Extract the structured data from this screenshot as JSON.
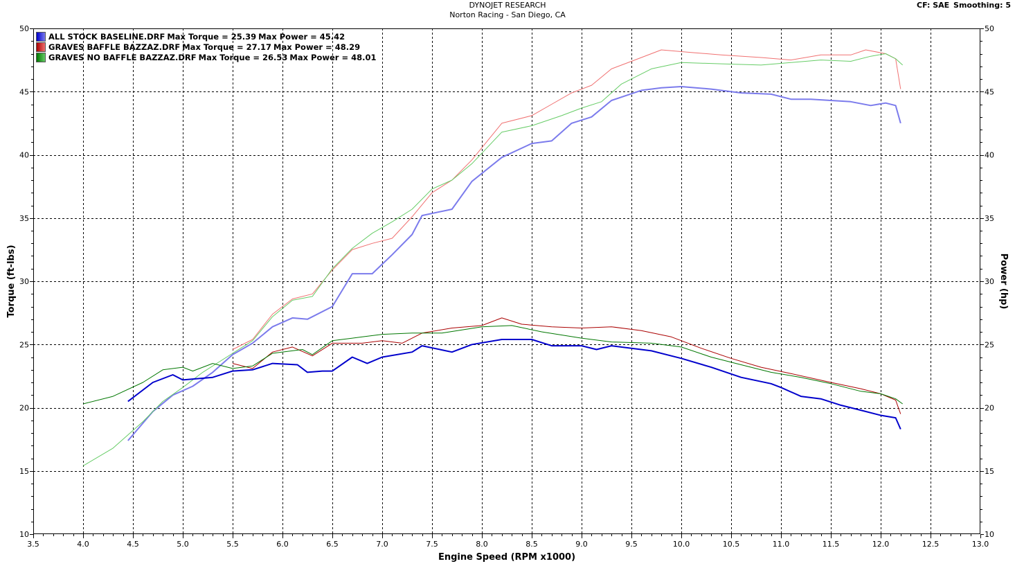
{
  "header": {
    "title": "DYNOJET RESEARCH",
    "subtitle": "Norton Racing - San Diego, CA",
    "cf_label": "CF: SAE",
    "smoothing_label": "Smoothing: 5"
  },
  "chart_data": {
    "type": "line",
    "title": "DYNOJET RESEARCH",
    "subtitle": "Norton Racing - San Diego, CA",
    "xlabel": "Engine Speed (RPM x1000)",
    "ylabel_left": "Torque (ft-lbs)",
    "ylabel_right": "Power (hp)",
    "xlim": [
      3.5,
      13.0
    ],
    "ylim": [
      10,
      50
    ],
    "xticks": [
      "3.5",
      "4.0",
      "4.5",
      "5.0",
      "5.5",
      "6.0",
      "6.5",
      "7.0",
      "7.5",
      "8.0",
      "8.5",
      "9.0",
      "9.5",
      "10.0",
      "10.5",
      "11.0",
      "11.5",
      "12.0",
      "12.5",
      "13.0"
    ],
    "yticks": [
      "10",
      "15",
      "20",
      "25",
      "30",
      "35",
      "40",
      "45",
      "50"
    ],
    "grid": true,
    "legend_position": "top-left",
    "series": [
      {
        "name": "ALL STOCK BASELINE.DRF",
        "max_torque_label": "Max Torque = 25.39",
        "max_power_label": "Max Power = 45.42",
        "color": "#0000cc",
        "power_color": "#7b7bec",
        "torque": [
          [
            4.45,
            20.5
          ],
          [
            4.7,
            22.0
          ],
          [
            4.9,
            22.6
          ],
          [
            5.0,
            22.2
          ],
          [
            5.3,
            22.4
          ],
          [
            5.5,
            22.9
          ],
          [
            5.7,
            23.0
          ],
          [
            5.9,
            23.5
          ],
          [
            6.15,
            23.4
          ],
          [
            6.25,
            22.8
          ],
          [
            6.4,
            22.9
          ],
          [
            6.5,
            22.9
          ],
          [
            6.7,
            24.0
          ],
          [
            6.85,
            23.5
          ],
          [
            7.0,
            24.0
          ],
          [
            7.3,
            24.4
          ],
          [
            7.4,
            24.9
          ],
          [
            7.7,
            24.4
          ],
          [
            7.9,
            25.0
          ],
          [
            8.2,
            25.4
          ],
          [
            8.5,
            25.4
          ],
          [
            8.7,
            24.9
          ],
          [
            9.0,
            24.9
          ],
          [
            9.15,
            24.6
          ],
          [
            9.3,
            24.9
          ],
          [
            9.5,
            24.7
          ],
          [
            9.7,
            24.5
          ],
          [
            10.0,
            23.9
          ],
          [
            10.3,
            23.2
          ],
          [
            10.6,
            22.4
          ],
          [
            10.9,
            21.9
          ],
          [
            11.0,
            21.6
          ],
          [
            11.2,
            20.9
          ],
          [
            11.4,
            20.7
          ],
          [
            11.6,
            20.2
          ],
          [
            11.8,
            19.8
          ],
          [
            12.0,
            19.4
          ],
          [
            12.15,
            19.2
          ],
          [
            12.2,
            18.3
          ]
        ],
        "power": [
          [
            4.45,
            17.4
          ],
          [
            4.7,
            19.7
          ],
          [
            4.9,
            21.0
          ],
          [
            5.1,
            21.7
          ],
          [
            5.3,
            22.8
          ],
          [
            5.5,
            24.2
          ],
          [
            5.7,
            25.1
          ],
          [
            5.9,
            26.4
          ],
          [
            6.1,
            27.1
          ],
          [
            6.25,
            27.0
          ],
          [
            6.5,
            28.0
          ],
          [
            6.7,
            30.6
          ],
          [
            6.9,
            30.6
          ],
          [
            7.1,
            32.1
          ],
          [
            7.3,
            33.7
          ],
          [
            7.4,
            35.2
          ],
          [
            7.7,
            35.7
          ],
          [
            7.9,
            37.9
          ],
          [
            8.2,
            39.8
          ],
          [
            8.5,
            40.9
          ],
          [
            8.7,
            41.1
          ],
          [
            8.9,
            42.5
          ],
          [
            9.1,
            43.0
          ],
          [
            9.3,
            44.3
          ],
          [
            9.6,
            45.1
          ],
          [
            9.8,
            45.3
          ],
          [
            10.0,
            45.4
          ],
          [
            10.3,
            45.2
          ],
          [
            10.6,
            44.9
          ],
          [
            10.9,
            44.8
          ],
          [
            11.1,
            44.4
          ],
          [
            11.3,
            44.4
          ],
          [
            11.5,
            44.3
          ],
          [
            11.7,
            44.2
          ],
          [
            11.9,
            43.9
          ],
          [
            12.05,
            44.1
          ],
          [
            12.15,
            43.9
          ],
          [
            12.2,
            42.5
          ]
        ]
      },
      {
        "name": "GRAVES BAFFLE BAZZAZ.DRF",
        "max_torque_label": "Max Torque = 27.17",
        "max_power_label": "Max Power = 48.29",
        "color": "#aa0000",
        "power_color": "#f07070",
        "torque": [
          [
            5.5,
            23.5
          ],
          [
            5.7,
            23.1
          ],
          [
            5.9,
            24.4
          ],
          [
            6.1,
            24.8
          ],
          [
            6.3,
            24.1
          ],
          [
            6.5,
            25.1
          ],
          [
            6.8,
            25.1
          ],
          [
            7.0,
            25.3
          ],
          [
            7.2,
            25.1
          ],
          [
            7.4,
            25.9
          ],
          [
            7.7,
            26.3
          ],
          [
            8.0,
            26.5
          ],
          [
            8.2,
            27.1
          ],
          [
            8.4,
            26.6
          ],
          [
            8.7,
            26.4
          ],
          [
            9.0,
            26.3
          ],
          [
            9.3,
            26.4
          ],
          [
            9.6,
            26.1
          ],
          [
            9.9,
            25.6
          ],
          [
            10.2,
            24.7
          ],
          [
            10.5,
            23.9
          ],
          [
            10.8,
            23.2
          ],
          [
            11.1,
            22.7
          ],
          [
            11.5,
            22.0
          ],
          [
            11.8,
            21.5
          ],
          [
            12.0,
            21.1
          ],
          [
            12.15,
            20.6
          ],
          [
            12.2,
            19.5
          ]
        ],
        "power": [
          [
            5.5,
            24.6
          ],
          [
            5.7,
            25.4
          ],
          [
            5.9,
            27.4
          ],
          [
            6.1,
            28.6
          ],
          [
            6.3,
            29.0
          ],
          [
            6.5,
            30.9
          ],
          [
            6.7,
            32.5
          ],
          [
            6.9,
            33.0
          ],
          [
            7.1,
            33.4
          ],
          [
            7.3,
            35.1
          ],
          [
            7.5,
            37.0
          ],
          [
            7.7,
            38.0
          ],
          [
            7.9,
            39.6
          ],
          [
            8.2,
            42.5
          ],
          [
            8.5,
            43.1
          ],
          [
            8.7,
            44.0
          ],
          [
            8.9,
            44.9
          ],
          [
            9.1,
            45.5
          ],
          [
            9.3,
            46.8
          ],
          [
            9.5,
            47.4
          ],
          [
            9.8,
            48.3
          ],
          [
            10.1,
            48.1
          ],
          [
            10.4,
            47.9
          ],
          [
            10.8,
            47.7
          ],
          [
            11.1,
            47.5
          ],
          [
            11.4,
            47.9
          ],
          [
            11.7,
            47.9
          ],
          [
            11.85,
            48.3
          ],
          [
            12.05,
            48.0
          ],
          [
            12.15,
            47.6
          ],
          [
            12.2,
            45.2
          ]
        ]
      },
      {
        "name": "GRAVES NO BAFFLE BAZZAZ.DRF",
        "max_torque_label": "Max Torque = 26.53",
        "max_power_label": "Max Power = 48.01",
        "color": "#007700",
        "power_color": "#66cc66",
        "torque": [
          [
            4.0,
            20.3
          ],
          [
            4.3,
            20.9
          ],
          [
            4.6,
            22.0
          ],
          [
            4.8,
            23.0
          ],
          [
            5.0,
            23.2
          ],
          [
            5.1,
            22.9
          ],
          [
            5.3,
            23.5
          ],
          [
            5.5,
            23.1
          ],
          [
            5.7,
            23.3
          ],
          [
            5.9,
            24.3
          ],
          [
            6.2,
            24.6
          ],
          [
            6.3,
            24.2
          ],
          [
            6.5,
            25.3
          ],
          [
            6.8,
            25.6
          ],
          [
            7.0,
            25.8
          ],
          [
            7.3,
            25.9
          ],
          [
            7.6,
            25.9
          ],
          [
            8.0,
            26.4
          ],
          [
            8.3,
            26.5
          ],
          [
            8.6,
            26.0
          ],
          [
            9.0,
            25.5
          ],
          [
            9.3,
            25.2
          ],
          [
            9.7,
            25.1
          ],
          [
            10.0,
            24.8
          ],
          [
            10.3,
            24.0
          ],
          [
            10.6,
            23.4
          ],
          [
            10.9,
            22.8
          ],
          [
            11.2,
            22.4
          ],
          [
            11.5,
            21.9
          ],
          [
            11.8,
            21.3
          ],
          [
            12.0,
            21.1
          ],
          [
            12.15,
            20.7
          ],
          [
            12.22,
            20.3
          ]
        ],
        "power": [
          [
            4.0,
            15.4
          ],
          [
            4.3,
            16.8
          ],
          [
            4.6,
            18.9
          ],
          [
            4.8,
            20.5
          ],
          [
            5.0,
            21.6
          ],
          [
            5.2,
            22.8
          ],
          [
            5.5,
            24.3
          ],
          [
            5.7,
            25.3
          ],
          [
            5.9,
            27.2
          ],
          [
            6.1,
            28.5
          ],
          [
            6.3,
            28.8
          ],
          [
            6.5,
            31.0
          ],
          [
            6.7,
            32.6
          ],
          [
            6.9,
            33.8
          ],
          [
            7.1,
            34.7
          ],
          [
            7.3,
            35.7
          ],
          [
            7.5,
            37.3
          ],
          [
            7.7,
            38.0
          ],
          [
            7.9,
            39.3
          ],
          [
            8.2,
            41.8
          ],
          [
            8.5,
            42.3
          ],
          [
            8.8,
            43.1
          ],
          [
            9.0,
            43.7
          ],
          [
            9.2,
            44.2
          ],
          [
            9.4,
            45.6
          ],
          [
            9.7,
            46.8
          ],
          [
            10.0,
            47.3
          ],
          [
            10.4,
            47.2
          ],
          [
            10.8,
            47.1
          ],
          [
            11.1,
            47.3
          ],
          [
            11.4,
            47.5
          ],
          [
            11.7,
            47.4
          ],
          [
            11.9,
            47.8
          ],
          [
            12.05,
            48.0
          ],
          [
            12.15,
            47.6
          ],
          [
            12.22,
            47.1
          ]
        ]
      }
    ]
  }
}
